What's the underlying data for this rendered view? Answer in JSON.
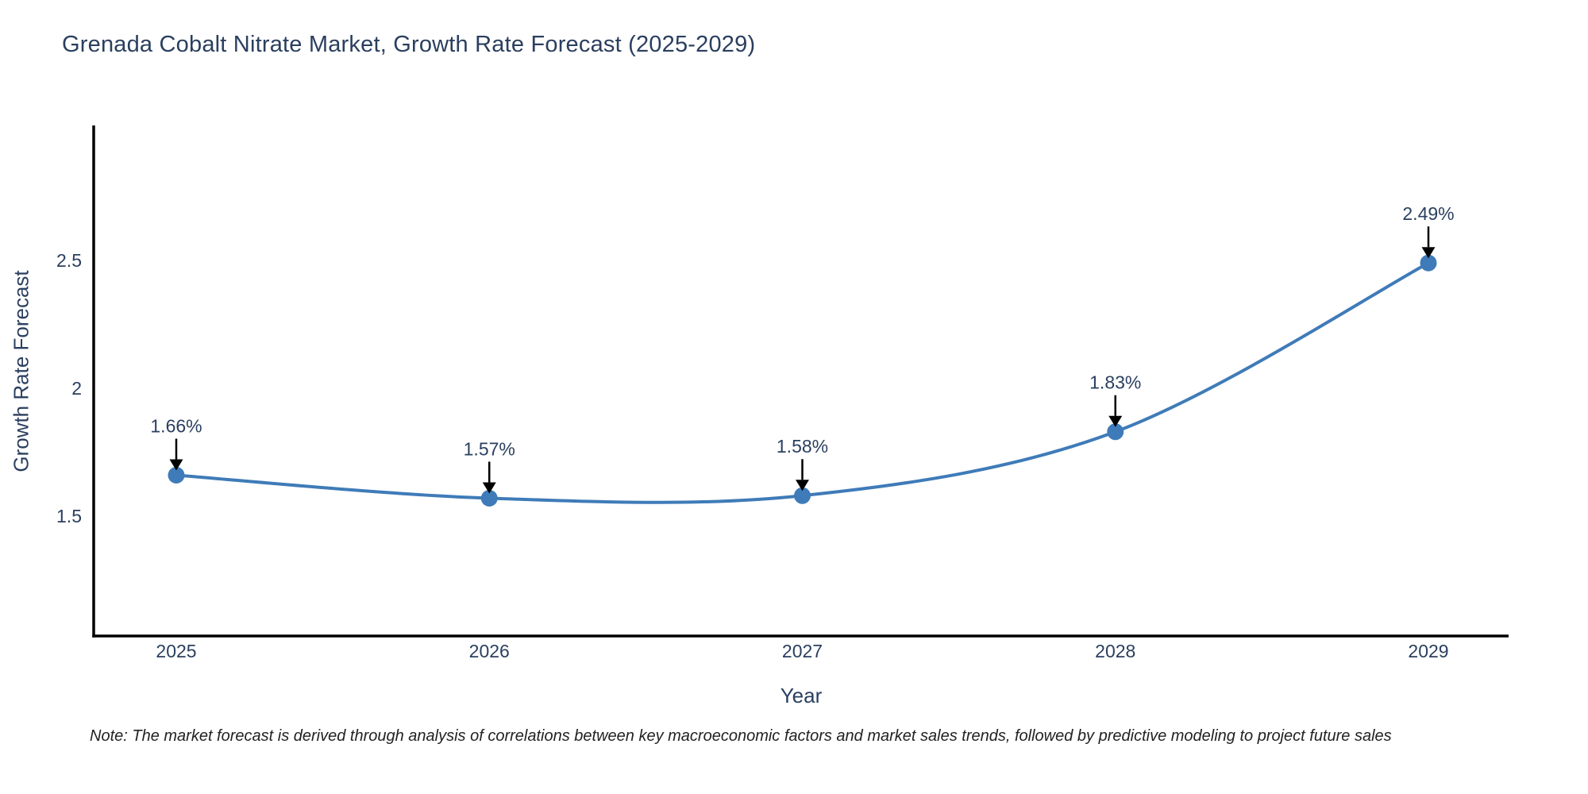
{
  "page": {
    "title": "Grenada Cobalt Nitrate Market, Growth Rate Forecast (2025-2029)",
    "note": "Note: The market forecast is derived through analysis of correlations between key macroeconomic factors and market sales trends, followed by predictive modeling to project future sales"
  },
  "chart_data": {
    "type": "line",
    "title": "Grenada Cobalt Nitrate Market, Growth Rate Forecast (2025-2029)",
    "xlabel": "Year",
    "ylabel": "Growth Rate Forecast",
    "x": [
      2025,
      2026,
      2027,
      2028,
      2029
    ],
    "series": [
      {
        "name": "Growth Rate Forecast",
        "values": [
          1.66,
          1.57,
          1.58,
          1.83,
          2.49
        ]
      }
    ],
    "point_labels": [
      "1.66%",
      "1.57%",
      "1.58%",
      "1.83%",
      "2.49%"
    ],
    "yticks": [
      1.5,
      2,
      2.5
    ],
    "ytick_labels": [
      "1.5",
      "2",
      "2.5"
    ],
    "ylim": [
      1.03,
      3.03
    ],
    "grid": false,
    "legend": false,
    "line_shape": "spline",
    "line_color": "#3f7bb8",
    "marker_color": "#3f7bb8",
    "arrow_color": "#000000"
  },
  "colors": {
    "text": "#2a3f5f",
    "axis_line": "#000000",
    "note_text": "#222222",
    "background": "#ffffff"
  }
}
